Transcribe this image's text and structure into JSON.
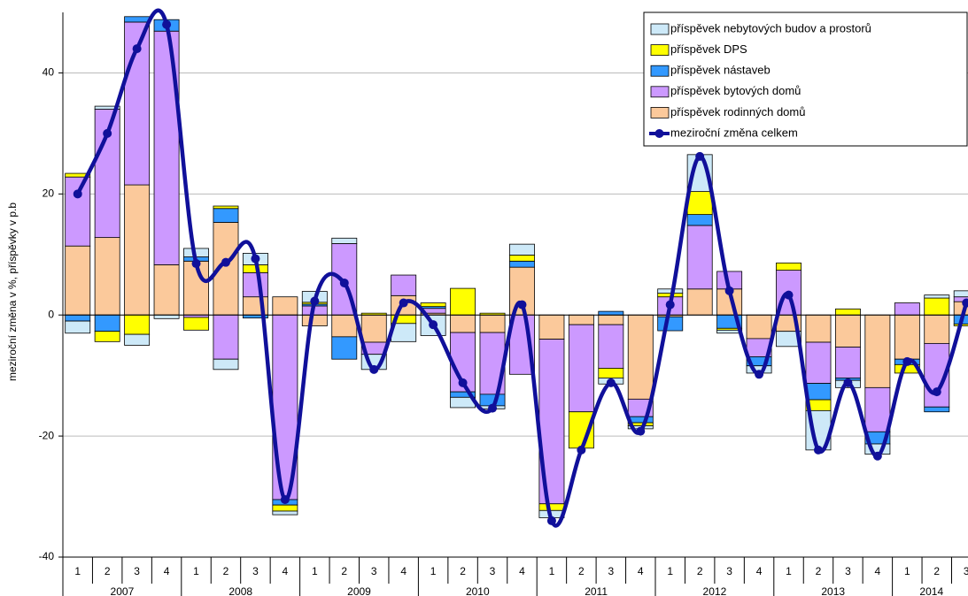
{
  "chart_data": {
    "type": "bar",
    "y_label": "meziroční změna v %, příspěvky v p.b",
    "categories": [
      "1",
      "2",
      "3",
      "4",
      "1",
      "2",
      "3",
      "4",
      "1",
      "2",
      "3",
      "4",
      "1",
      "2",
      "3",
      "4",
      "1",
      "2",
      "3",
      "4",
      "1",
      "2",
      "3",
      "4",
      "1",
      "2",
      "3",
      "4",
      "1",
      "2",
      "3"
    ],
    "x_groups": [
      "2007",
      "2008",
      "2009",
      "2010",
      "2011",
      "2012",
      "2013",
      "2014"
    ],
    "ylim": [
      -40,
      50
    ],
    "yticks": [
      -40,
      -20,
      0,
      20,
      40
    ],
    "grid": true,
    "legend": "top-right",
    "series": [
      {
        "name": "příspěvek nebytových budov a prostorů",
        "type": "bar",
        "color": "#cde9f8",
        "values": [
          -2,
          0.5,
          -1.8,
          -0.6,
          1.4,
          -1.7,
          1.9,
          -0.6,
          1.8,
          0.9,
          -2.5,
          -3,
          -3.4,
          -1.7,
          -0.5,
          1.8,
          -1.2,
          0,
          -1,
          -0.5,
          0.7,
          6.1,
          -0.5,
          -1.2,
          -2.5,
          -6.5,
          -1.2,
          -1.7,
          0,
          0.5,
          1
        ]
      },
      {
        "name": "příspěvek DPS",
        "type": "bar",
        "color": "#ffff00",
        "values": [
          0.6,
          -1.7,
          -3.2,
          0,
          -2.1,
          0.4,
          1.3,
          -1,
          0.3,
          0,
          0.3,
          -1.4,
          0.6,
          4.4,
          0.3,
          1,
          -1.1,
          -6,
          -1.6,
          -0.5,
          0.6,
          3.8,
          -0.3,
          0,
          1.2,
          -1.8,
          1,
          0,
          -1.4,
          2.8,
          -0.3
        ]
      },
      {
        "name": "příspěvek nástaveb",
        "type": "bar",
        "color": "#3399ff",
        "values": [
          -1,
          -2.7,
          0.9,
          1.9,
          0.7,
          2.3,
          -0.5,
          -0.9,
          0.3,
          -3.7,
          0,
          0,
          0.3,
          -0.9,
          -1.9,
          1,
          0,
          0,
          0.6,
          -1,
          -2.3,
          1.8,
          -2.2,
          -1.5,
          0,
          -2.7,
          -0.4,
          -2,
          -0.9,
          -0.8,
          -1.5
        ]
      },
      {
        "name": "příspěvek bytových domů",
        "type": "bar",
        "color": "#cc99ff",
        "values": [
          11.4,
          21.2,
          26.9,
          38.6,
          -0.4,
          -7.3,
          4,
          -30.5,
          1.5,
          11.8,
          -2,
          3.4,
          0.8,
          -9.8,
          -10.2,
          -9.8,
          -27.2,
          -14.4,
          -7.2,
          -2.9,
          3,
          10.5,
          2.9,
          -3,
          7.4,
          -6.8,
          -5.1,
          -7.3,
          2,
          -10.5,
          0.8
        ]
      },
      {
        "name": "příspěvek rodinných domů",
        "type": "bar",
        "color": "#fbc99b",
        "values": [
          11.4,
          12.8,
          21.5,
          8.3,
          8.9,
          15.3,
          3,
          3,
          -1.8,
          -3.6,
          -4.5,
          3.2,
          0.3,
          -2.9,
          -2.9,
          7.9,
          -4,
          -1.6,
          -1.6,
          -13.9,
          -0.3,
          4.3,
          4.3,
          -3.9,
          -2.7,
          -4.5,
          -5.3,
          -12,
          -7.3,
          -4.7,
          2.2
        ]
      },
      {
        "name": "meziroční změna  celkem",
        "type": "line",
        "color": "#10109a",
        "values": [
          20,
          30,
          44,
          48,
          8.5,
          8.7,
          9.3,
          -30.5,
          2.3,
          5.3,
          -9,
          2,
          -1.6,
          -11.2,
          -15.4,
          1.7,
          -34,
          -22.3,
          -11.2,
          -19.2,
          1.7,
          26.2,
          4,
          -9.8,
          3.3,
          -22.3,
          -11.2,
          -23.3,
          -7.7,
          -12.7,
          2
        ]
      }
    ]
  }
}
